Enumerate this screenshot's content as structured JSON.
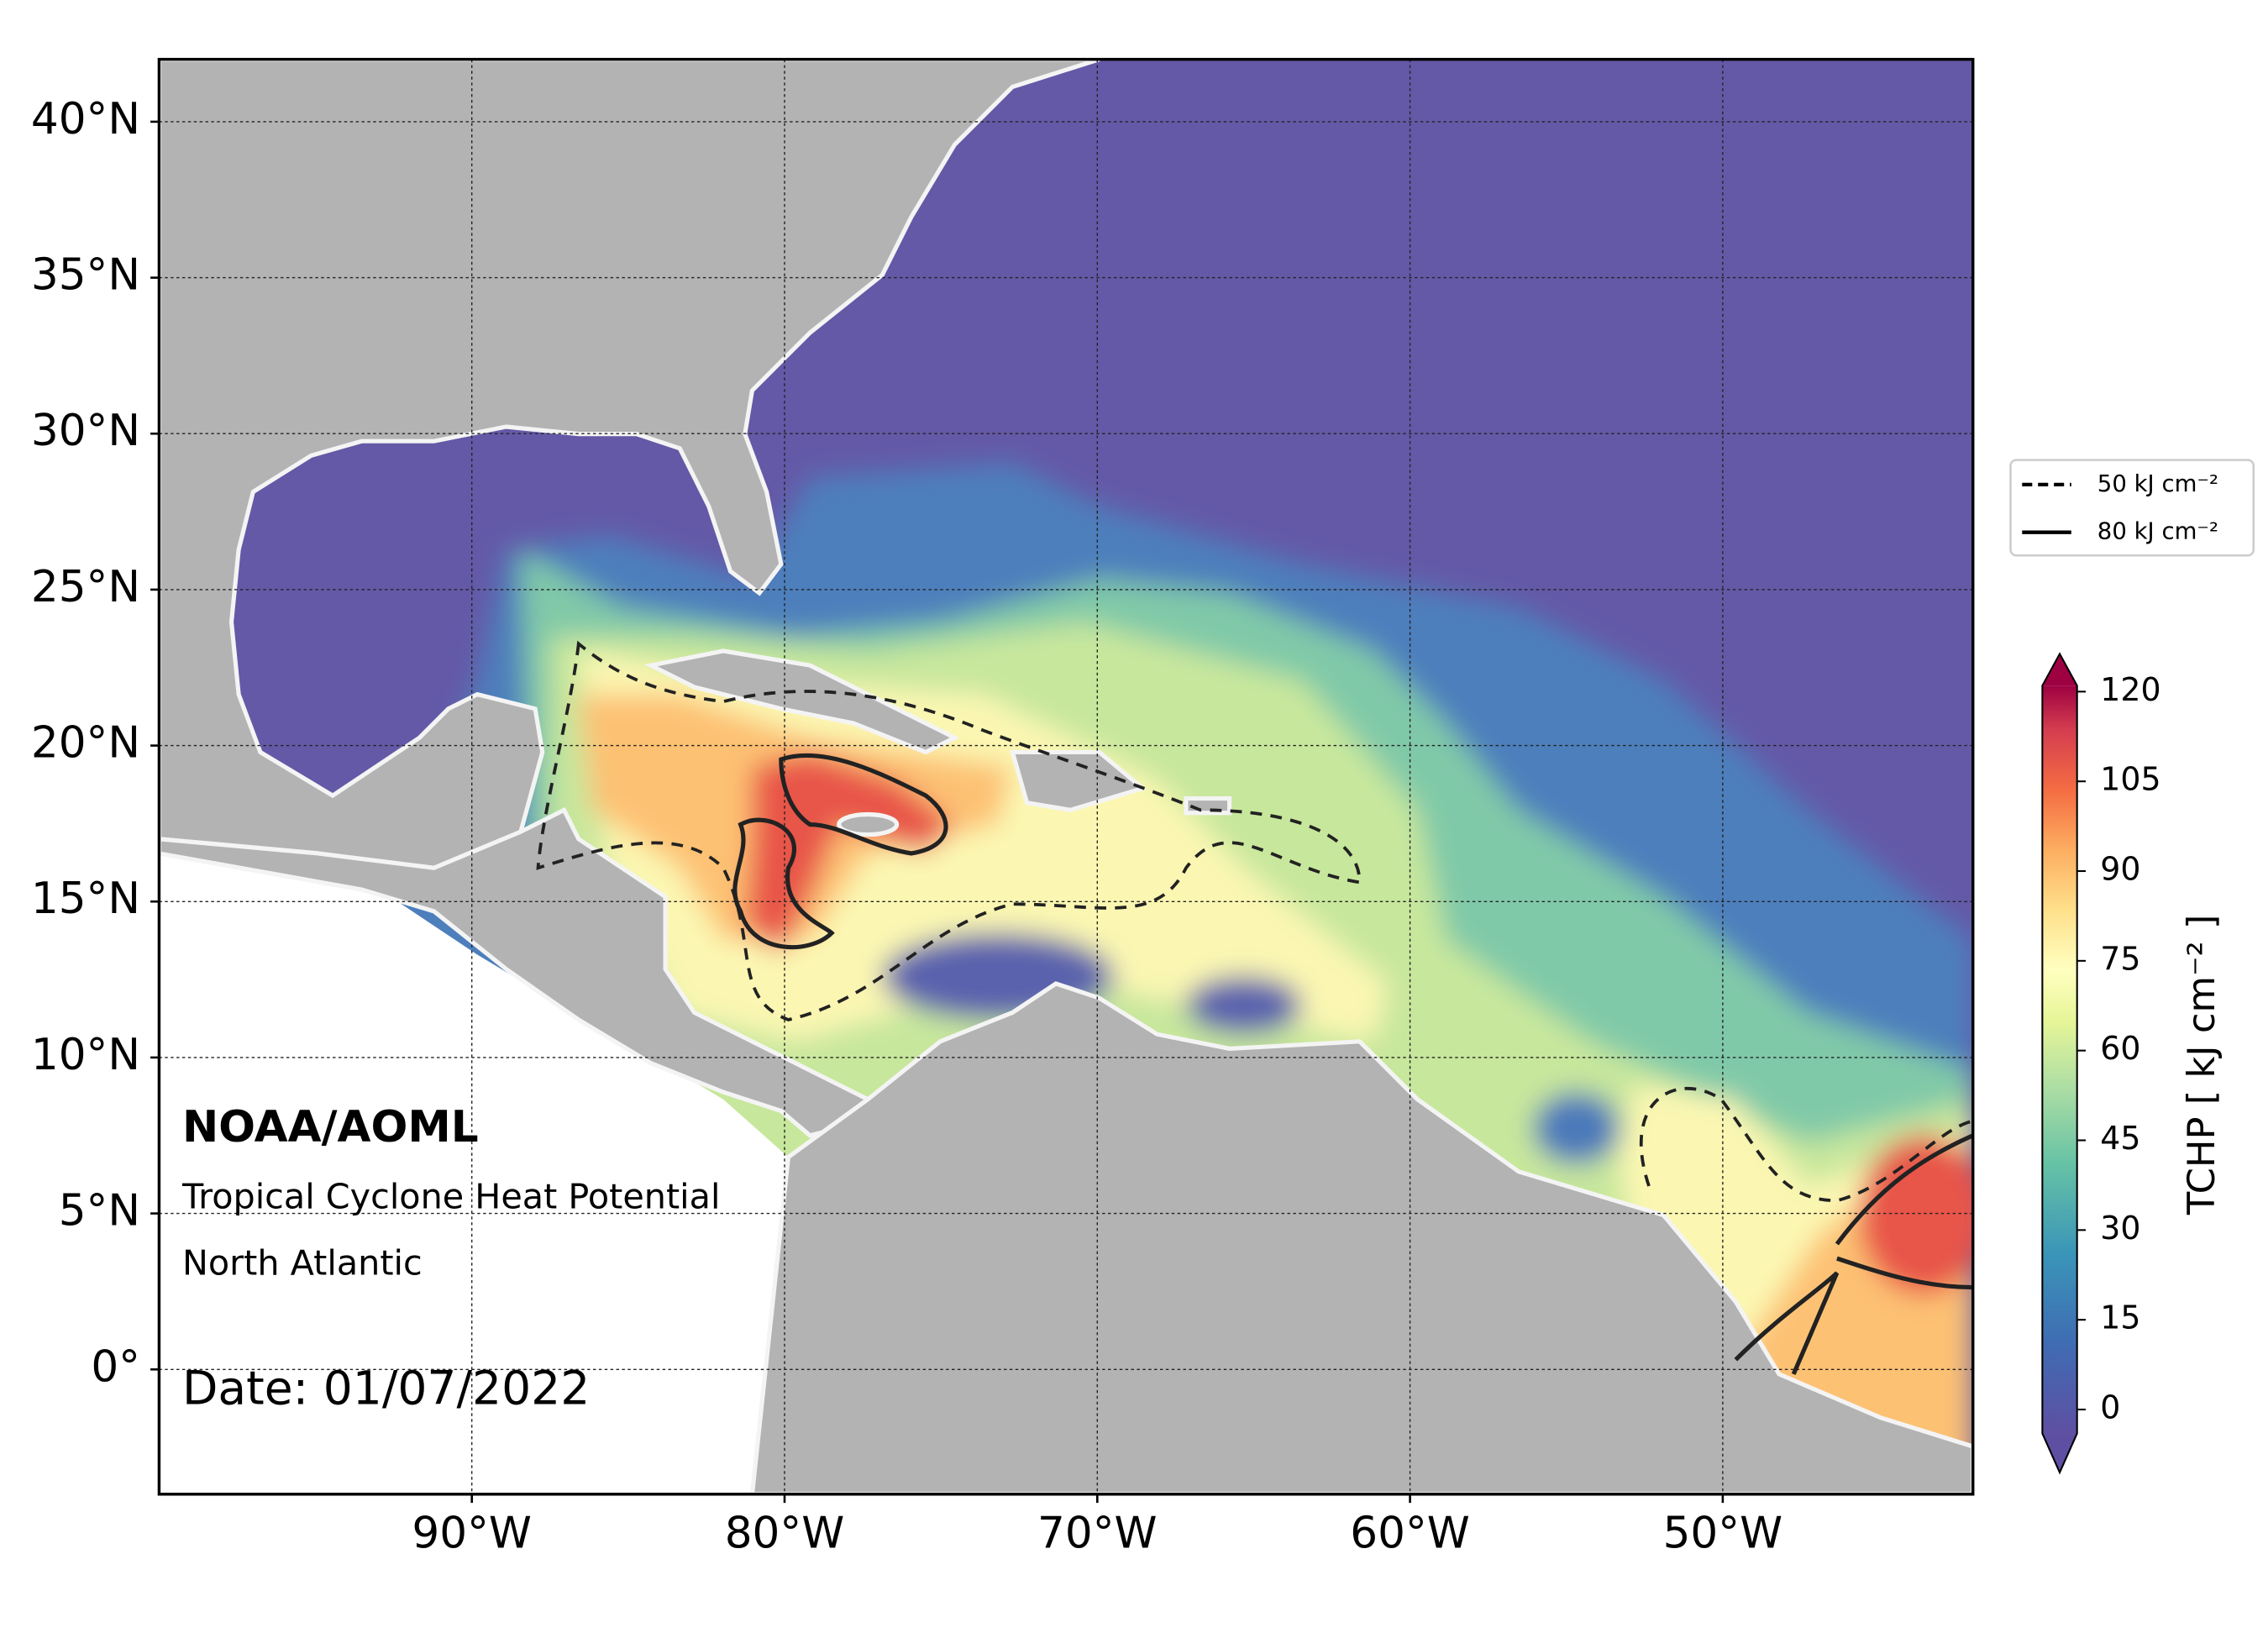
{
  "header": {
    "title": "NOAA/AOML",
    "product": "Tropical Cyclone Heat Potential",
    "region": "North Atlantic",
    "date": "Date: 01/07/2022"
  },
  "map": {
    "lonlim": [
      -100,
      -42
    ],
    "latlim": [
      -4,
      42
    ],
    "lonticks": [
      {
        "value": -90,
        "label": "90°W"
      },
      {
        "value": -80,
        "label": "80°W"
      },
      {
        "value": -70,
        "label": "70°W"
      },
      {
        "value": -60,
        "label": "60°W"
      },
      {
        "value": -50,
        "label": "50°W"
      }
    ],
    "latticks": [
      {
        "value": 0,
        "label": "0°"
      },
      {
        "value": 5,
        "label": "5°N"
      },
      {
        "value": 10,
        "label": "10°N"
      },
      {
        "value": 15,
        "label": "15°N"
      },
      {
        "value": 20,
        "label": "20°N"
      },
      {
        "value": 25,
        "label": "25°N"
      },
      {
        "value": 30,
        "label": "30°N"
      },
      {
        "value": 35,
        "label": "35°N"
      },
      {
        "value": 40,
        "label": "40°N"
      }
    ],
    "grid": true
  },
  "legend": [
    {
      "label": "50 kJ cm⁻²",
      "style": "dashed"
    },
    {
      "label": "80 kJ cm⁻²",
      "style": "solid"
    }
  ],
  "colorbar": {
    "label": "TCHP [ kJ cm⁻² ]",
    "range": [
      -4,
      121
    ],
    "ticks": [
      0,
      15,
      30,
      45,
      60,
      75,
      90,
      105,
      120
    ]
  }
}
